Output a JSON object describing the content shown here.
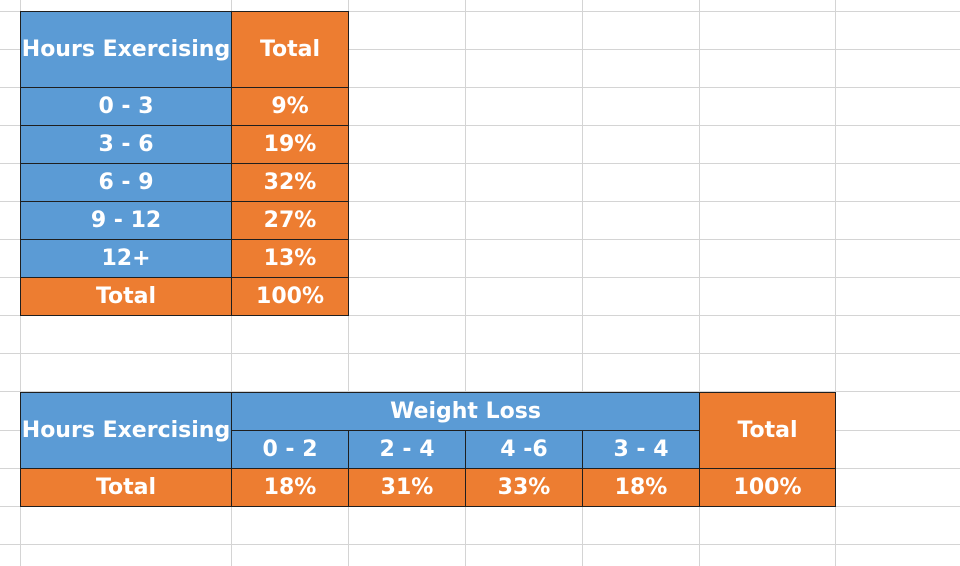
{
  "colors": {
    "blue": "#5b9bd5",
    "orange": "#ed7d31",
    "gridline": "#d4d4d4"
  },
  "table1": {
    "header_hours": "Hours Exercising",
    "header_total": "Total",
    "rows": [
      {
        "range": "0 - 3",
        "total": "9%"
      },
      {
        "range": "3 - 6",
        "total": "19%"
      },
      {
        "range": "6 - 9",
        "total": "32%"
      },
      {
        "range": "9 - 12",
        "total": "27%"
      },
      {
        "range": "12+",
        "total": "13%"
      }
    ],
    "total_label": "Total",
    "total_value": "100%"
  },
  "table2": {
    "header_hours": "Hours Exercising",
    "header_weight_loss": "Weight Loss",
    "header_total": "Total",
    "columns": [
      "0 - 2",
      "2 - 4",
      "4 -6",
      "3 - 4"
    ],
    "total_label": "Total",
    "values": [
      "18%",
      "31%",
      "33%",
      "18%"
    ],
    "grand_total": "100%"
  }
}
